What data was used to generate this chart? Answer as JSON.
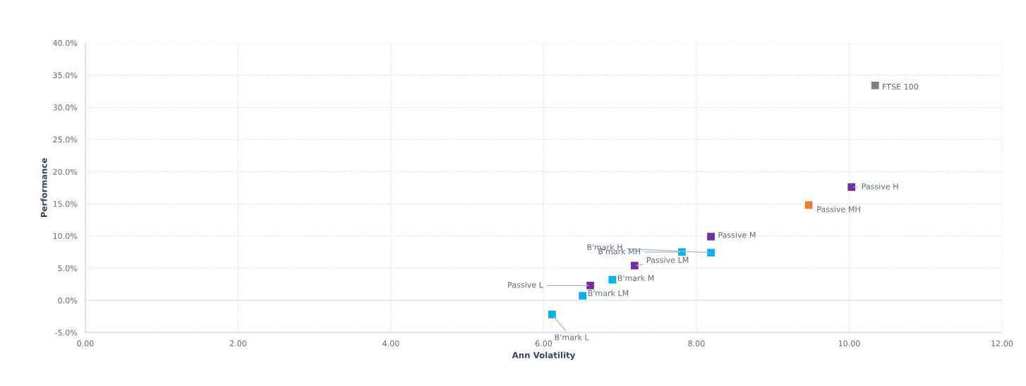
{
  "chart_data": {
    "type": "scatter",
    "xlabel": "Ann Volatility",
    "ylabel": "Performance",
    "marker": "square",
    "grid": true,
    "legend": false,
    "series": [
      {
        "name": "FTSE 100",
        "color": "#808080",
        "x": [
          10.34
        ],
        "values": [
          33.4
        ]
      },
      {
        "name": "Passive H",
        "color": "#7030a0",
        "x": [
          10.03
        ],
        "values": [
          17.6
        ]
      },
      {
        "name": "Passive MH",
        "color": "#ed7d31",
        "x": [
          9.47
        ],
        "values": [
          14.8
        ]
      },
      {
        "name": "Passive M",
        "color": "#7030a0",
        "x": [
          8.19
        ],
        "values": [
          9.9
        ]
      },
      {
        "name": "B'mark H",
        "color": "#00b0f0",
        "x": [
          8.19
        ],
        "values": [
          7.4
        ]
      },
      {
        "name": "B'mark MH",
        "color": "#00b0f0",
        "x": [
          7.81
        ],
        "values": [
          7.5
        ]
      },
      {
        "name": "Passive LM",
        "color": "#7030a0",
        "x": [
          7.19
        ],
        "values": [
          5.4
        ]
      },
      {
        "name": "B'mark M",
        "color": "#00b0f0",
        "x": [
          6.9
        ],
        "values": [
          3.2
        ]
      },
      {
        "name": "Passive L",
        "color": "#7030a0",
        "x": [
          6.61
        ],
        "values": [
          2.3
        ]
      },
      {
        "name": "B'mark LM",
        "color": "#00b0f0",
        "x": [
          6.51
        ],
        "values": [
          0.7
        ]
      },
      {
        "name": "B'mark L",
        "color": "#00b0f0",
        "x": [
          6.11
        ],
        "values": [
          -2.2
        ]
      }
    ],
    "xlim": [
      0,
      12
    ],
    "xticks": [
      {
        "value": 0,
        "label": "0.00"
      },
      {
        "value": 2,
        "label": "2.00"
      },
      {
        "value": 4,
        "label": "4.00"
      },
      {
        "value": 6,
        "label": "6.00"
      },
      {
        "value": 8,
        "label": "8.00"
      },
      {
        "value": 10,
        "label": "10.00"
      },
      {
        "value": 12,
        "label": "12.00"
      }
    ],
    "ylim": [
      -5,
      40
    ],
    "yticks": [
      {
        "value": -5,
        "label": "-5.0%"
      },
      {
        "value": 0,
        "label": "0.0%"
      },
      {
        "value": 5,
        "label": "5.0%"
      },
      {
        "value": 10,
        "label": "10.0%"
      },
      {
        "value": 15,
        "label": "15.0%"
      },
      {
        "value": 20,
        "label": "20.0%"
      },
      {
        "value": 25,
        "label": "25.0%"
      },
      {
        "value": 30,
        "label": "30.0%"
      },
      {
        "value": 35,
        "label": "35.0%"
      },
      {
        "value": 40,
        "label": "40.0%"
      }
    ]
  }
}
